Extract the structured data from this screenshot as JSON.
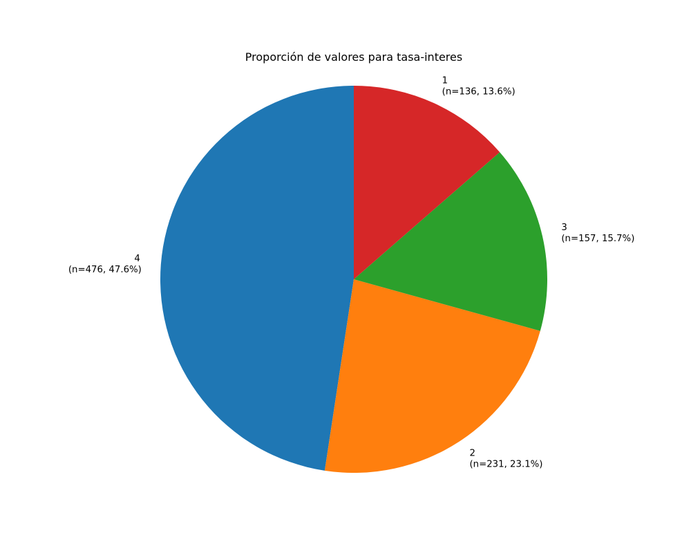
{
  "chart_data": {
    "type": "pie",
    "title": "Proporción de valores para tasa-interes",
    "start_angle_deg": 90,
    "direction": "counterclockwise",
    "slices": [
      {
        "label": "4",
        "count": 476,
        "percent": 47.6,
        "value_text": "(n=476, 47.6%)",
        "color": "#1f77b4"
      },
      {
        "label": "2",
        "count": 231,
        "percent": 23.1,
        "value_text": "(n=231, 23.1%)",
        "color": "#ff7f0e"
      },
      {
        "label": "3",
        "count": 157,
        "percent": 15.7,
        "value_text": "(n=157, 15.7%)",
        "color": "#2ca02c"
      },
      {
        "label": "1",
        "count": 136,
        "percent": 13.6,
        "value_text": "(n=136, 13.6%)",
        "color": "#d62728"
      }
    ]
  }
}
